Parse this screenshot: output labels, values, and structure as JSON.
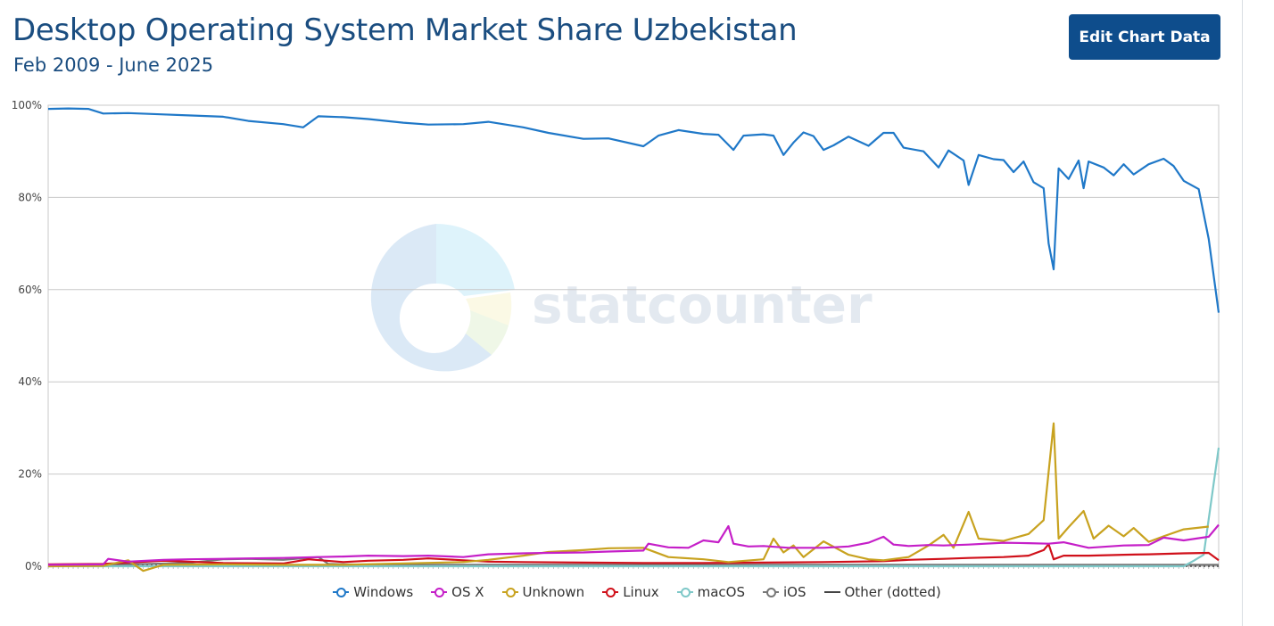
{
  "header": {
    "title": "Desktop Operating System Market Share Uzbekistan",
    "subtitle": "Feb 2009 - June 2025",
    "edit_button_label": "Edit Chart Data"
  },
  "watermark": {
    "text": "statcounter"
  },
  "chart_data": {
    "type": "line",
    "title": "Desktop Operating System Market Share Uzbekistan",
    "subtitle": "Feb 2009 - June 2025",
    "x_start": "2009-02",
    "x_end": "2025-06",
    "ylim": [
      0,
      100
    ],
    "y_ticks": [
      0,
      20,
      40,
      60,
      80,
      100
    ],
    "y_tick_labels": [
      "0%",
      "20%",
      "40%",
      "60%",
      "80%",
      "100%"
    ],
    "grid": true,
    "legend_position": "bottom",
    "series": [
      {
        "name": "Windows",
        "color": "#1f78c8",
        "points": [
          [
            "2009-02",
            99.2
          ],
          [
            "2009-06",
            99.3
          ],
          [
            "2009-10",
            99.2
          ],
          [
            "2010-01",
            98.2
          ],
          [
            "2010-06",
            98.3
          ],
          [
            "2011-01",
            98
          ],
          [
            "2011-06",
            97.8
          ],
          [
            "2012-01",
            97.5
          ],
          [
            "2012-06",
            96.6
          ],
          [
            "2013-01",
            95.9
          ],
          [
            "2013-05",
            95.2
          ],
          [
            "2013-08",
            97.6
          ],
          [
            "2014-01",
            97.4
          ],
          [
            "2014-06",
            97
          ],
          [
            "2015-01",
            96.2
          ],
          [
            "2015-06",
            95.8
          ],
          [
            "2016-01",
            95.9
          ],
          [
            "2016-06",
            96.4
          ],
          [
            "2017-01",
            95.2
          ],
          [
            "2017-06",
            94
          ],
          [
            "2018-01",
            92.7
          ],
          [
            "2018-06",
            92.8
          ],
          [
            "2019-01",
            91.1
          ],
          [
            "2019-04",
            93.4
          ],
          [
            "2019-08",
            94.6
          ],
          [
            "2020-01",
            93.8
          ],
          [
            "2020-04",
            93.6
          ],
          [
            "2020-07",
            90.3
          ],
          [
            "2020-09",
            93.4
          ],
          [
            "2021-01",
            93.7
          ],
          [
            "2021-03",
            93.4
          ],
          [
            "2021-05",
            89.2
          ],
          [
            "2021-07",
            91.9
          ],
          [
            "2021-09",
            94.1
          ],
          [
            "2021-11",
            93.3
          ],
          [
            "2022-01",
            90.3
          ],
          [
            "2022-03",
            91.3
          ],
          [
            "2022-06",
            93.2
          ],
          [
            "2022-10",
            91.2
          ],
          [
            "2023-01",
            94
          ],
          [
            "2023-03",
            94
          ],
          [
            "2023-05",
            90.8
          ],
          [
            "2023-09",
            90
          ],
          [
            "2023-12",
            86.5
          ],
          [
            "2024-02",
            90.2
          ],
          [
            "2024-05",
            88
          ],
          [
            "2024-06",
            82.7
          ],
          [
            "2024-08",
            89.2
          ],
          [
            "2024-11",
            88.3
          ],
          [
            "2025-01",
            88.1
          ],
          [
            "2025-03",
            85.5
          ],
          [
            "2025-05",
            87.8
          ],
          [
            "2025-07",
            83.3
          ],
          [
            "2025-09",
            82
          ],
          [
            "2025-10",
            70
          ],
          [
            "2025-11",
            64.4
          ],
          [
            "2025-12",
            86.3
          ],
          [
            "2026-02",
            84
          ],
          [
            "2026-04",
            88
          ],
          [
            "2026-05",
            82
          ],
          [
            "2026-06",
            87.8
          ],
          [
            "2026-09",
            86.5
          ],
          [
            "2026-11",
            84.8
          ],
          [
            "2027-01",
            87.2
          ],
          [
            "2027-03",
            85
          ],
          [
            "2027-06",
            87.2
          ],
          [
            "2027-09",
            88.4
          ],
          [
            "2027-11",
            86.8
          ],
          [
            "2028-01",
            83.6
          ],
          [
            "2028-04",
            81.8
          ],
          [
            "2028-06",
            71
          ],
          [
            "2028-08",
            55
          ]
        ]
      },
      {
        "name": "OS X",
        "color": "#c51fc8",
        "points": [
          [
            "2009-02",
            0.3
          ],
          [
            "2010-01",
            0.4
          ],
          [
            "2010-02",
            1.6
          ],
          [
            "2010-06",
            1
          ],
          [
            "2011-01",
            1.4
          ],
          [
            "2011-06",
            1.5
          ],
          [
            "2012-01",
            1.6
          ],
          [
            "2012-06",
            1.7
          ],
          [
            "2013-01",
            1.8
          ],
          [
            "2013-08",
            2
          ],
          [
            "2014-01",
            2.1
          ],
          [
            "2014-06",
            2.3
          ],
          [
            "2015-01",
            2.2
          ],
          [
            "2015-06",
            2.3
          ],
          [
            "2016-01",
            2
          ],
          [
            "2016-06",
            2.6
          ],
          [
            "2017-01",
            2.8
          ],
          [
            "2017-06",
            2.9
          ],
          [
            "2018-01",
            3
          ],
          [
            "2018-06",
            3.2
          ],
          [
            "2019-01",
            3.4
          ],
          [
            "2019-02",
            4.9
          ],
          [
            "2019-06",
            4.1
          ],
          [
            "2019-10",
            4
          ],
          [
            "2020-01",
            5.6
          ],
          [
            "2020-04",
            5.2
          ],
          [
            "2020-06",
            8.7
          ],
          [
            "2020-07",
            4.9
          ],
          [
            "2020-10",
            4.3
          ],
          [
            "2021-01",
            4.4
          ],
          [
            "2021-06",
            4
          ],
          [
            "2022-01",
            4
          ],
          [
            "2022-06",
            4.3
          ],
          [
            "2022-10",
            5.1
          ],
          [
            "2023-01",
            6.4
          ],
          [
            "2023-03",
            4.7
          ],
          [
            "2023-06",
            4.4
          ],
          [
            "2023-10",
            4.6
          ],
          [
            "2024-01",
            4.5
          ],
          [
            "2024-06",
            4.7
          ],
          [
            "2025-01",
            5.1
          ],
          [
            "2025-06",
            5
          ],
          [
            "2025-10",
            4.9
          ],
          [
            "2026-01",
            5.2
          ],
          [
            "2026-06",
            4
          ],
          [
            "2026-10",
            4.3
          ],
          [
            "2027-01",
            4.5
          ],
          [
            "2027-06",
            4.6
          ],
          [
            "2027-09",
            6.2
          ],
          [
            "2028-01",
            5.6
          ],
          [
            "2028-06",
            6.4
          ],
          [
            "2028-08",
            9
          ]
        ]
      },
      {
        "name": "Unknown",
        "color": "#c8a21f",
        "points": [
          [
            "2009-02",
            0
          ],
          [
            "2010-01",
            0.1
          ],
          [
            "2010-06",
            1.3
          ],
          [
            "2010-09",
            -1
          ],
          [
            "2011-01",
            0.3
          ],
          [
            "2012-01",
            0.4
          ],
          [
            "2013-01",
            0.3
          ],
          [
            "2014-01",
            0.3
          ],
          [
            "2015-01",
            0.6
          ],
          [
            "2016-01",
            0.9
          ],
          [
            "2016-06",
            1.4
          ],
          [
            "2017-01",
            2.3
          ],
          [
            "2017-06",
            3.1
          ],
          [
            "2018-01",
            3.5
          ],
          [
            "2018-06",
            3.9
          ],
          [
            "2019-01",
            4
          ],
          [
            "2019-06",
            2
          ],
          [
            "2020-01",
            1.5
          ],
          [
            "2020-06",
            0.9
          ],
          [
            "2021-01",
            1.5
          ],
          [
            "2021-03",
            6
          ],
          [
            "2021-05",
            3
          ],
          [
            "2021-07",
            4.5
          ],
          [
            "2021-09",
            2
          ],
          [
            "2022-01",
            5.4
          ],
          [
            "2022-06",
            2.5
          ],
          [
            "2022-10",
            1.5
          ],
          [
            "2023-01",
            1.3
          ],
          [
            "2023-06",
            2
          ],
          [
            "2023-10",
            4.5
          ],
          [
            "2024-01",
            6.8
          ],
          [
            "2024-03",
            4
          ],
          [
            "2024-06",
            11.8
          ],
          [
            "2024-08",
            6
          ],
          [
            "2025-01",
            5.5
          ],
          [
            "2025-06",
            7
          ],
          [
            "2025-09",
            10
          ],
          [
            "2025-11",
            31
          ],
          [
            "2025-12",
            6
          ],
          [
            "2026-02",
            8.5
          ],
          [
            "2026-05",
            12
          ],
          [
            "2026-07",
            6
          ],
          [
            "2026-10",
            8.8
          ],
          [
            "2027-01",
            6.5
          ],
          [
            "2027-03",
            8.3
          ],
          [
            "2027-06",
            5.3
          ],
          [
            "2027-09",
            6.5
          ],
          [
            "2028-01",
            8
          ],
          [
            "2028-06",
            8.6
          ]
        ]
      },
      {
        "name": "Linux",
        "color": "#d0101a",
        "points": [
          [
            "2009-02",
            0.4
          ],
          [
            "2010-01",
            0.5
          ],
          [
            "2011-01",
            1.2
          ],
          [
            "2012-01",
            0.7
          ],
          [
            "2013-01",
            0.6
          ],
          [
            "2013-06",
            1.5
          ],
          [
            "2014-01",
            0.9
          ],
          [
            "2014-06",
            1.2
          ],
          [
            "2015-01",
            1.4
          ],
          [
            "2015-06",
            1.7
          ],
          [
            "2016-01",
            1.3
          ],
          [
            "2016-06",
            1
          ],
          [
            "2017-01",
            0.9
          ],
          [
            "2018-01",
            0.8
          ],
          [
            "2019-01",
            0.7
          ],
          [
            "2020-01",
            0.7
          ],
          [
            "2021-01",
            0.8
          ],
          [
            "2022-01",
            0.9
          ],
          [
            "2023-01",
            1.1
          ],
          [
            "2023-06",
            1.4
          ],
          [
            "2024-01",
            1.6
          ],
          [
            "2024-06",
            1.8
          ],
          [
            "2025-01",
            2
          ],
          [
            "2025-06",
            2.3
          ],
          [
            "2025-09",
            3.5
          ],
          [
            "2025-10",
            4.8
          ],
          [
            "2025-11",
            1.5
          ],
          [
            "2026-01",
            2.3
          ],
          [
            "2026-06",
            2.3
          ],
          [
            "2027-01",
            2.5
          ],
          [
            "2027-06",
            2.6
          ],
          [
            "2028-01",
            2.8
          ],
          [
            "2028-06",
            2.9
          ],
          [
            "2028-08",
            1.3
          ]
        ]
      },
      {
        "name": "macOS",
        "color": "#7ec8c8",
        "points": [
          [
            "2009-02",
            0
          ],
          [
            "2027-09",
            0
          ],
          [
            "2028-01",
            0
          ],
          [
            "2028-03",
            1.2
          ],
          [
            "2028-05",
            2.5
          ],
          [
            "2028-08",
            25.7
          ]
        ]
      },
      {
        "name": "iOS",
        "color": "#777777",
        "points": [
          [
            "2009-02",
            0
          ],
          [
            "2011-06",
            0.7
          ],
          [
            "2012-01",
            1.5
          ],
          [
            "2012-06",
            1.6
          ],
          [
            "2013-01",
            1.4
          ],
          [
            "2013-08",
            2
          ],
          [
            "2013-10",
            0.5
          ],
          [
            "2014-06",
            0.3
          ],
          [
            "2028-08",
            0.3
          ]
        ]
      },
      {
        "name": "Other (dotted)",
        "color": "#444444",
        "dotted": true,
        "points": [
          [
            "2009-02",
            0.1
          ],
          [
            "2028-08",
            0.1
          ]
        ]
      }
    ]
  }
}
